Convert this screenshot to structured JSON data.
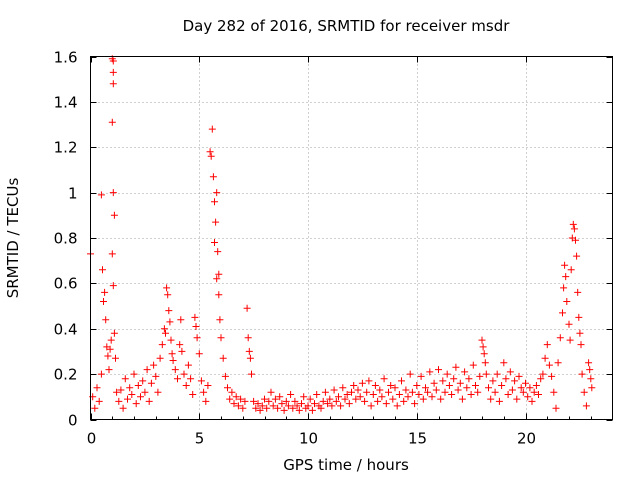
{
  "chart_data": {
    "type": "scatter",
    "title": "Day 282 of 2016, SRMTID for receiver msdr",
    "xlabel": "GPS time / hours",
    "ylabel": "SRMTID / TECUs",
    "xlim": [
      0,
      24
    ],
    "ylim": [
      0,
      1.6
    ],
    "xticks": [
      0,
      5,
      10,
      15,
      20
    ],
    "xtick_labels": [
      "0",
      "5",
      "10",
      "15",
      "20"
    ],
    "yticks": [
      0,
      0.2,
      0.4,
      0.6,
      0.8,
      1,
      1.2,
      1.4,
      1.6
    ],
    "ytick_labels": [
      "0",
      "0.2",
      "0.4",
      "0.6",
      "0.8",
      "1",
      "1.2",
      "1.4",
      "1.6"
    ],
    "grid": true,
    "marker": "+",
    "color": "#ff0000",
    "series": [
      {
        "name": "SRMTID",
        "points": [
          [
            0.0,
            0.73
          ],
          [
            0.1,
            0.1
          ],
          [
            0.2,
            0.05
          ],
          [
            0.3,
            0.14
          ],
          [
            0.4,
            0.08
          ],
          [
            0.5,
            0.99
          ],
          [
            0.5,
            0.2
          ],
          [
            0.55,
            0.66
          ],
          [
            0.6,
            0.52
          ],
          [
            0.65,
            0.56
          ],
          [
            0.7,
            0.44
          ],
          [
            0.75,
            0.32
          ],
          [
            0.8,
            0.28
          ],
          [
            0.85,
            0.22
          ],
          [
            0.9,
            0.31
          ],
          [
            0.95,
            0.35
          ],
          [
            1.0,
            1.59
          ],
          [
            1.05,
            1.58
          ],
          [
            1.05,
            1.53
          ],
          [
            1.05,
            1.48
          ],
          [
            1.0,
            1.31
          ],
          [
            1.05,
            1.0
          ],
          [
            1.1,
            0.9
          ],
          [
            1.0,
            0.73
          ],
          [
            1.05,
            0.59
          ],
          [
            1.1,
            0.38
          ],
          [
            1.15,
            0.27
          ],
          [
            1.2,
            0.12
          ],
          [
            1.3,
            0.08
          ],
          [
            1.4,
            0.13
          ],
          [
            1.5,
            0.05
          ],
          [
            1.6,
            0.18
          ],
          [
            1.7,
            0.09
          ],
          [
            1.8,
            0.14
          ],
          [
            1.9,
            0.11
          ],
          [
            2.0,
            0.2
          ],
          [
            2.1,
            0.07
          ],
          [
            2.2,
            0.15
          ],
          [
            2.3,
            0.1
          ],
          [
            2.4,
            0.17
          ],
          [
            2.5,
            0.12
          ],
          [
            2.6,
            0.22
          ],
          [
            2.7,
            0.08
          ],
          [
            2.8,
            0.16
          ],
          [
            2.9,
            0.24
          ],
          [
            3.0,
            0.19
          ],
          [
            3.1,
            0.12
          ],
          [
            3.2,
            0.27
          ],
          [
            3.3,
            0.33
          ],
          [
            3.4,
            0.4
          ],
          [
            3.45,
            0.38
          ],
          [
            3.5,
            0.58
          ],
          [
            3.55,
            0.55
          ],
          [
            3.6,
            0.48
          ],
          [
            3.65,
            0.43
          ],
          [
            3.7,
            0.35
          ],
          [
            3.75,
            0.29
          ],
          [
            3.8,
            0.26
          ],
          [
            3.9,
            0.22
          ],
          [
            4.0,
            0.18
          ],
          [
            4.1,
            0.33
          ],
          [
            4.15,
            0.44
          ],
          [
            4.2,
            0.3
          ],
          [
            4.3,
            0.2
          ],
          [
            4.4,
            0.15
          ],
          [
            4.5,
            0.24
          ],
          [
            4.6,
            0.18
          ],
          [
            4.7,
            0.11
          ],
          [
            4.8,
            0.45
          ],
          [
            4.85,
            0.41
          ],
          [
            4.9,
            0.36
          ],
          [
            5.0,
            0.29
          ],
          [
            5.1,
            0.17
          ],
          [
            5.2,
            0.12
          ],
          [
            5.3,
            0.08
          ],
          [
            5.4,
            0.15
          ],
          [
            5.5,
            1.18
          ],
          [
            5.55,
            1.16
          ],
          [
            5.6,
            1.28
          ],
          [
            5.65,
            1.07
          ],
          [
            5.7,
            0.96
          ],
          [
            5.75,
            0.87
          ],
          [
            5.8,
            1.0
          ],
          [
            5.7,
            0.78
          ],
          [
            5.85,
            0.74
          ],
          [
            5.9,
            0.64
          ],
          [
            5.8,
            0.62
          ],
          [
            5.9,
            0.55
          ],
          [
            5.95,
            0.44
          ],
          [
            6.0,
            0.36
          ],
          [
            6.1,
            0.27
          ],
          [
            6.2,
            0.19
          ],
          [
            6.3,
            0.14
          ],
          [
            6.4,
            0.09
          ],
          [
            6.5,
            0.12
          ],
          [
            6.6,
            0.07
          ],
          [
            6.7,
            0.1
          ],
          [
            6.8,
            0.06
          ],
          [
            6.9,
            0.09
          ],
          [
            7.0,
            0.05
          ],
          [
            7.1,
            0.08
          ],
          [
            7.2,
            0.49
          ],
          [
            7.25,
            0.36
          ],
          [
            7.3,
            0.3
          ],
          [
            7.35,
            0.27
          ],
          [
            7.4,
            0.2
          ],
          [
            7.5,
            0.08
          ],
          [
            7.6,
            0.05
          ],
          [
            7.7,
            0.07
          ],
          [
            7.8,
            0.04
          ],
          [
            7.9,
            0.06
          ],
          [
            8.0,
            0.09
          ],
          [
            8.1,
            0.05
          ],
          [
            8.2,
            0.08
          ],
          [
            8.3,
            0.12
          ],
          [
            8.4,
            0.06
          ],
          [
            8.5,
            0.09
          ],
          [
            8.6,
            0.05
          ],
          [
            8.7,
            0.1
          ],
          [
            8.8,
            0.07
          ],
          [
            8.9,
            0.04
          ],
          [
            9.0,
            0.08
          ],
          [
            9.1,
            0.06
          ],
          [
            9.2,
            0.11
          ],
          [
            9.3,
            0.05
          ],
          [
            9.4,
            0.08
          ],
          [
            9.5,
            0.06
          ],
          [
            9.6,
            0.04
          ],
          [
            9.7,
            0.07
          ],
          [
            9.8,
            0.1
          ],
          [
            9.9,
            0.05
          ],
          [
            10.0,
            0.06
          ],
          [
            10.1,
            0.09
          ],
          [
            10.2,
            0.04
          ],
          [
            10.3,
            0.07
          ],
          [
            10.4,
            0.11
          ],
          [
            10.5,
            0.06
          ],
          [
            10.6,
            0.05
          ],
          [
            10.7,
            0.08
          ],
          [
            10.8,
            0.12
          ],
          [
            10.9,
            0.07
          ],
          [
            11.0,
            0.09
          ],
          [
            11.1,
            0.06
          ],
          [
            11.2,
            0.13
          ],
          [
            11.3,
            0.08
          ],
          [
            11.4,
            0.1
          ],
          [
            11.5,
            0.06
          ],
          [
            11.6,
            0.14
          ],
          [
            11.7,
            0.09
          ],
          [
            11.8,
            0.11
          ],
          [
            11.9,
            0.07
          ],
          [
            12.0,
            0.12
          ],
          [
            12.1,
            0.15
          ],
          [
            12.2,
            0.09
          ],
          [
            12.3,
            0.13
          ],
          [
            12.4,
            0.1
          ],
          [
            12.5,
            0.16
          ],
          [
            12.6,
            0.08
          ],
          [
            12.7,
            0.12
          ],
          [
            12.8,
            0.17
          ],
          [
            12.9,
            0.06
          ],
          [
            13.0,
            0.11
          ],
          [
            13.1,
            0.15
          ],
          [
            13.2,
            0.08
          ],
          [
            13.3,
            0.13
          ],
          [
            13.4,
            0.1
          ],
          [
            13.5,
            0.18
          ],
          [
            13.6,
            0.07
          ],
          [
            13.7,
            0.12
          ],
          [
            13.8,
            0.15
          ],
          [
            13.9,
            0.09
          ],
          [
            14.0,
            0.14
          ],
          [
            14.1,
            0.06
          ],
          [
            14.2,
            0.11
          ],
          [
            14.3,
            0.17
          ],
          [
            14.4,
            0.08
          ],
          [
            14.5,
            0.13
          ],
          [
            14.6,
            0.1
          ],
          [
            14.7,
            0.2
          ],
          [
            14.8,
            0.12
          ],
          [
            14.9,
            0.07
          ],
          [
            15.0,
            0.15
          ],
          [
            15.1,
            0.11
          ],
          [
            15.2,
            0.19
          ],
          [
            15.3,
            0.09
          ],
          [
            15.4,
            0.14
          ],
          [
            15.5,
            0.12
          ],
          [
            15.6,
            0.21
          ],
          [
            15.7,
            0.1
          ],
          [
            15.8,
            0.16
          ],
          [
            15.9,
            0.13
          ],
          [
            16.0,
            0.22
          ],
          [
            16.1,
            0.09
          ],
          [
            16.2,
            0.17
          ],
          [
            16.3,
            0.12
          ],
          [
            16.4,
            0.2
          ],
          [
            16.5,
            0.15
          ],
          [
            16.6,
            0.11
          ],
          [
            16.7,
            0.18
          ],
          [
            16.8,
            0.23
          ],
          [
            16.9,
            0.13
          ],
          [
            17.0,
            0.16
          ],
          [
            17.1,
            0.09
          ],
          [
            17.2,
            0.21
          ],
          [
            17.3,
            0.14
          ],
          [
            17.4,
            0.18
          ],
          [
            17.5,
            0.11
          ],
          [
            17.6,
            0.24
          ],
          [
            17.7,
            0.15
          ],
          [
            17.8,
            0.12
          ],
          [
            17.9,
            0.19
          ],
          [
            18.0,
            0.35
          ],
          [
            18.05,
            0.32
          ],
          [
            18.1,
            0.29
          ],
          [
            18.15,
            0.25
          ],
          [
            18.2,
            0.2
          ],
          [
            18.3,
            0.14
          ],
          [
            18.4,
            0.09
          ],
          [
            18.5,
            0.17
          ],
          [
            18.6,
            0.12
          ],
          [
            18.7,
            0.2
          ],
          [
            18.8,
            0.08
          ],
          [
            18.9,
            0.15
          ],
          [
            19.0,
            0.25
          ],
          [
            19.1,
            0.18
          ],
          [
            19.2,
            0.11
          ],
          [
            19.3,
            0.21
          ],
          [
            19.4,
            0.13
          ],
          [
            19.5,
            0.17
          ],
          [
            19.6,
            0.09
          ],
          [
            19.7,
            0.19
          ],
          [
            19.8,
            0.14
          ],
          [
            19.9,
            0.12
          ],
          [
            20.0,
            0.16
          ],
          [
            20.1,
            0.1
          ],
          [
            20.2,
            0.14
          ],
          [
            20.3,
            0.08
          ],
          [
            20.4,
            0.12
          ],
          [
            20.5,
            0.15
          ],
          [
            20.6,
            0.11
          ],
          [
            20.7,
            0.18
          ],
          [
            20.8,
            0.2
          ],
          [
            20.9,
            0.27
          ],
          [
            21.0,
            0.33
          ],
          [
            21.1,
            0.24
          ],
          [
            21.2,
            0.19
          ],
          [
            21.3,
            0.12
          ],
          [
            21.4,
            0.05
          ],
          [
            21.5,
            0.25
          ],
          [
            21.6,
            0.36
          ],
          [
            21.7,
            0.47
          ],
          [
            21.75,
            0.58
          ],
          [
            21.8,
            0.68
          ],
          [
            21.85,
            0.63
          ],
          [
            21.9,
            0.52
          ],
          [
            22.0,
            0.42
          ],
          [
            22.05,
            0.35
          ],
          [
            22.1,
            0.66
          ],
          [
            22.15,
            0.8
          ],
          [
            22.2,
            0.86
          ],
          [
            22.25,
            0.84
          ],
          [
            22.3,
            0.79
          ],
          [
            22.35,
            0.72
          ],
          [
            22.4,
            0.56
          ],
          [
            22.45,
            0.45
          ],
          [
            22.5,
            0.38
          ],
          [
            22.55,
            0.33
          ],
          [
            22.6,
            0.2
          ],
          [
            22.7,
            0.12
          ],
          [
            22.8,
            0.06
          ],
          [
            22.9,
            0.25
          ],
          [
            22.95,
            0.22
          ],
          [
            23.0,
            0.18
          ],
          [
            23.05,
            0.14
          ]
        ]
      }
    ]
  }
}
